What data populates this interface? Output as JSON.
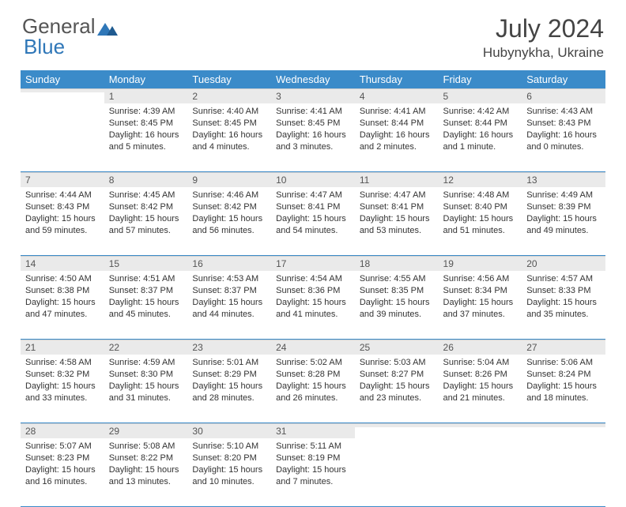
{
  "logo": {
    "text1": "General",
    "text2": "Blue"
  },
  "title": "July 2024",
  "location": "Hubynykha, Ukraine",
  "colors": {
    "header_bg": "#3b8bc9",
    "header_text": "#ffffff",
    "daynum_bg": "#eaeaea",
    "sep": "#3b8bc9",
    "logo_blue": "#2f77b8"
  },
  "weekdays": [
    "Sunday",
    "Monday",
    "Tuesday",
    "Wednesday",
    "Thursday",
    "Friday",
    "Saturday"
  ],
  "weeks": [
    [
      {
        "n": "",
        "sr": "",
        "ss": "",
        "dl": ""
      },
      {
        "n": "1",
        "sr": "4:39 AM",
        "ss": "8:45 PM",
        "dl": "16 hours and 5 minutes."
      },
      {
        "n": "2",
        "sr": "4:40 AM",
        "ss": "8:45 PM",
        "dl": "16 hours and 4 minutes."
      },
      {
        "n": "3",
        "sr": "4:41 AM",
        "ss": "8:45 PM",
        "dl": "16 hours and 3 minutes."
      },
      {
        "n": "4",
        "sr": "4:41 AM",
        "ss": "8:44 PM",
        "dl": "16 hours and 2 minutes."
      },
      {
        "n": "5",
        "sr": "4:42 AM",
        "ss": "8:44 PM",
        "dl": "16 hours and 1 minute."
      },
      {
        "n": "6",
        "sr": "4:43 AM",
        "ss": "8:43 PM",
        "dl": "16 hours and 0 minutes."
      }
    ],
    [
      {
        "n": "7",
        "sr": "4:44 AM",
        "ss": "8:43 PM",
        "dl": "15 hours and 59 minutes."
      },
      {
        "n": "8",
        "sr": "4:45 AM",
        "ss": "8:42 PM",
        "dl": "15 hours and 57 minutes."
      },
      {
        "n": "9",
        "sr": "4:46 AM",
        "ss": "8:42 PM",
        "dl": "15 hours and 56 minutes."
      },
      {
        "n": "10",
        "sr": "4:47 AM",
        "ss": "8:41 PM",
        "dl": "15 hours and 54 minutes."
      },
      {
        "n": "11",
        "sr": "4:47 AM",
        "ss": "8:41 PM",
        "dl": "15 hours and 53 minutes."
      },
      {
        "n": "12",
        "sr": "4:48 AM",
        "ss": "8:40 PM",
        "dl": "15 hours and 51 minutes."
      },
      {
        "n": "13",
        "sr": "4:49 AM",
        "ss": "8:39 PM",
        "dl": "15 hours and 49 minutes."
      }
    ],
    [
      {
        "n": "14",
        "sr": "4:50 AM",
        "ss": "8:38 PM",
        "dl": "15 hours and 47 minutes."
      },
      {
        "n": "15",
        "sr": "4:51 AM",
        "ss": "8:37 PM",
        "dl": "15 hours and 45 minutes."
      },
      {
        "n": "16",
        "sr": "4:53 AM",
        "ss": "8:37 PM",
        "dl": "15 hours and 44 minutes."
      },
      {
        "n": "17",
        "sr": "4:54 AM",
        "ss": "8:36 PM",
        "dl": "15 hours and 41 minutes."
      },
      {
        "n": "18",
        "sr": "4:55 AM",
        "ss": "8:35 PM",
        "dl": "15 hours and 39 minutes."
      },
      {
        "n": "19",
        "sr": "4:56 AM",
        "ss": "8:34 PM",
        "dl": "15 hours and 37 minutes."
      },
      {
        "n": "20",
        "sr": "4:57 AM",
        "ss": "8:33 PM",
        "dl": "15 hours and 35 minutes."
      }
    ],
    [
      {
        "n": "21",
        "sr": "4:58 AM",
        "ss": "8:32 PM",
        "dl": "15 hours and 33 minutes."
      },
      {
        "n": "22",
        "sr": "4:59 AM",
        "ss": "8:30 PM",
        "dl": "15 hours and 31 minutes."
      },
      {
        "n": "23",
        "sr": "5:01 AM",
        "ss": "8:29 PM",
        "dl": "15 hours and 28 minutes."
      },
      {
        "n": "24",
        "sr": "5:02 AM",
        "ss": "8:28 PM",
        "dl": "15 hours and 26 minutes."
      },
      {
        "n": "25",
        "sr": "5:03 AM",
        "ss": "8:27 PM",
        "dl": "15 hours and 23 minutes."
      },
      {
        "n": "26",
        "sr": "5:04 AM",
        "ss": "8:26 PM",
        "dl": "15 hours and 21 minutes."
      },
      {
        "n": "27",
        "sr": "5:06 AM",
        "ss": "8:24 PM",
        "dl": "15 hours and 18 minutes."
      }
    ],
    [
      {
        "n": "28",
        "sr": "5:07 AM",
        "ss": "8:23 PM",
        "dl": "15 hours and 16 minutes."
      },
      {
        "n": "29",
        "sr": "5:08 AM",
        "ss": "8:22 PM",
        "dl": "15 hours and 13 minutes."
      },
      {
        "n": "30",
        "sr": "5:10 AM",
        "ss": "8:20 PM",
        "dl": "15 hours and 10 minutes."
      },
      {
        "n": "31",
        "sr": "5:11 AM",
        "ss": "8:19 PM",
        "dl": "15 hours and 7 minutes."
      },
      {
        "n": "",
        "sr": "",
        "ss": "",
        "dl": ""
      },
      {
        "n": "",
        "sr": "",
        "ss": "",
        "dl": ""
      },
      {
        "n": "",
        "sr": "",
        "ss": "",
        "dl": ""
      }
    ]
  ],
  "labels": {
    "sunrise": "Sunrise:",
    "sunset": "Sunset:",
    "daylight": "Daylight:"
  }
}
